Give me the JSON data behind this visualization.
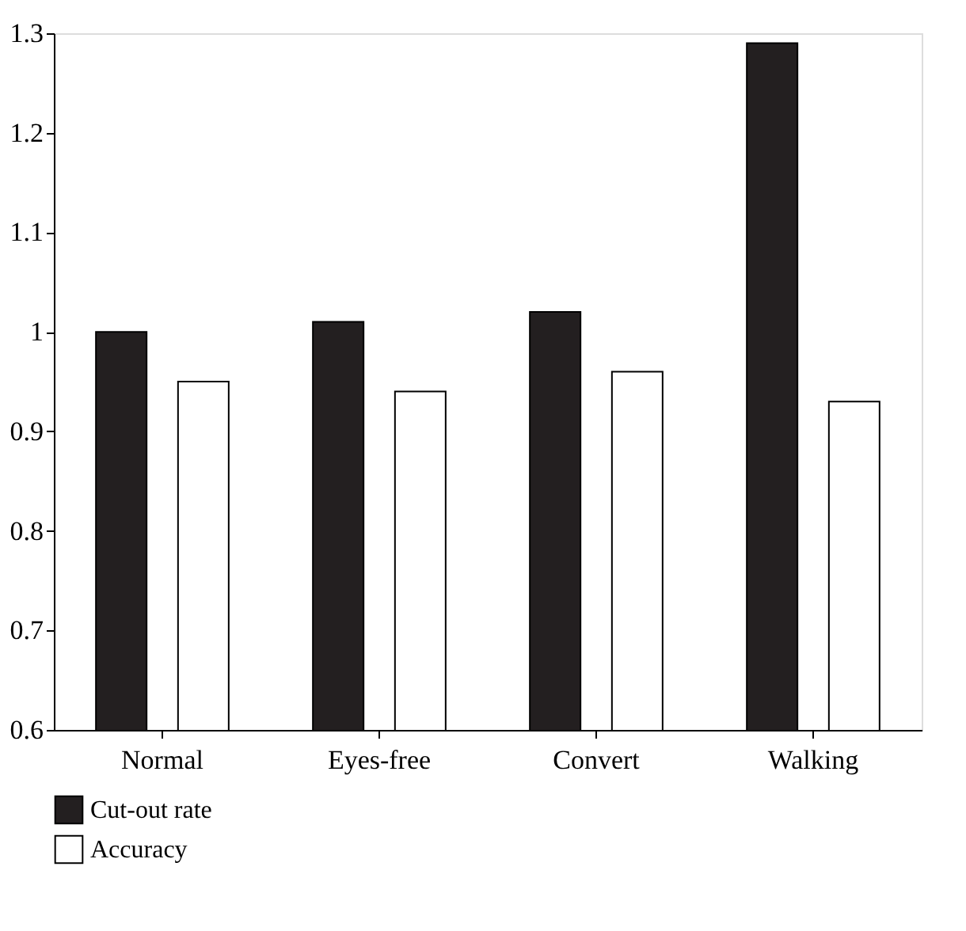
{
  "chart_data": {
    "type": "bar",
    "categories": [
      "Normal",
      "Eyes-free",
      "Convert",
      "Walking"
    ],
    "series": [
      {
        "name": "Cut-out rate",
        "color": "#231f20",
        "values": [
          1.0,
          1.01,
          1.02,
          1.29
        ]
      },
      {
        "name": "Accuracy",
        "color": "#ffffff",
        "values": [
          0.95,
          0.94,
          0.96,
          0.93
        ]
      }
    ],
    "ylim": [
      0.6,
      1.3
    ],
    "yticks": [
      0.6,
      0.7,
      0.8,
      0.9,
      1,
      1.1,
      1.2,
      1.3
    ],
    "grid": false,
    "legend": "bottom left"
  }
}
